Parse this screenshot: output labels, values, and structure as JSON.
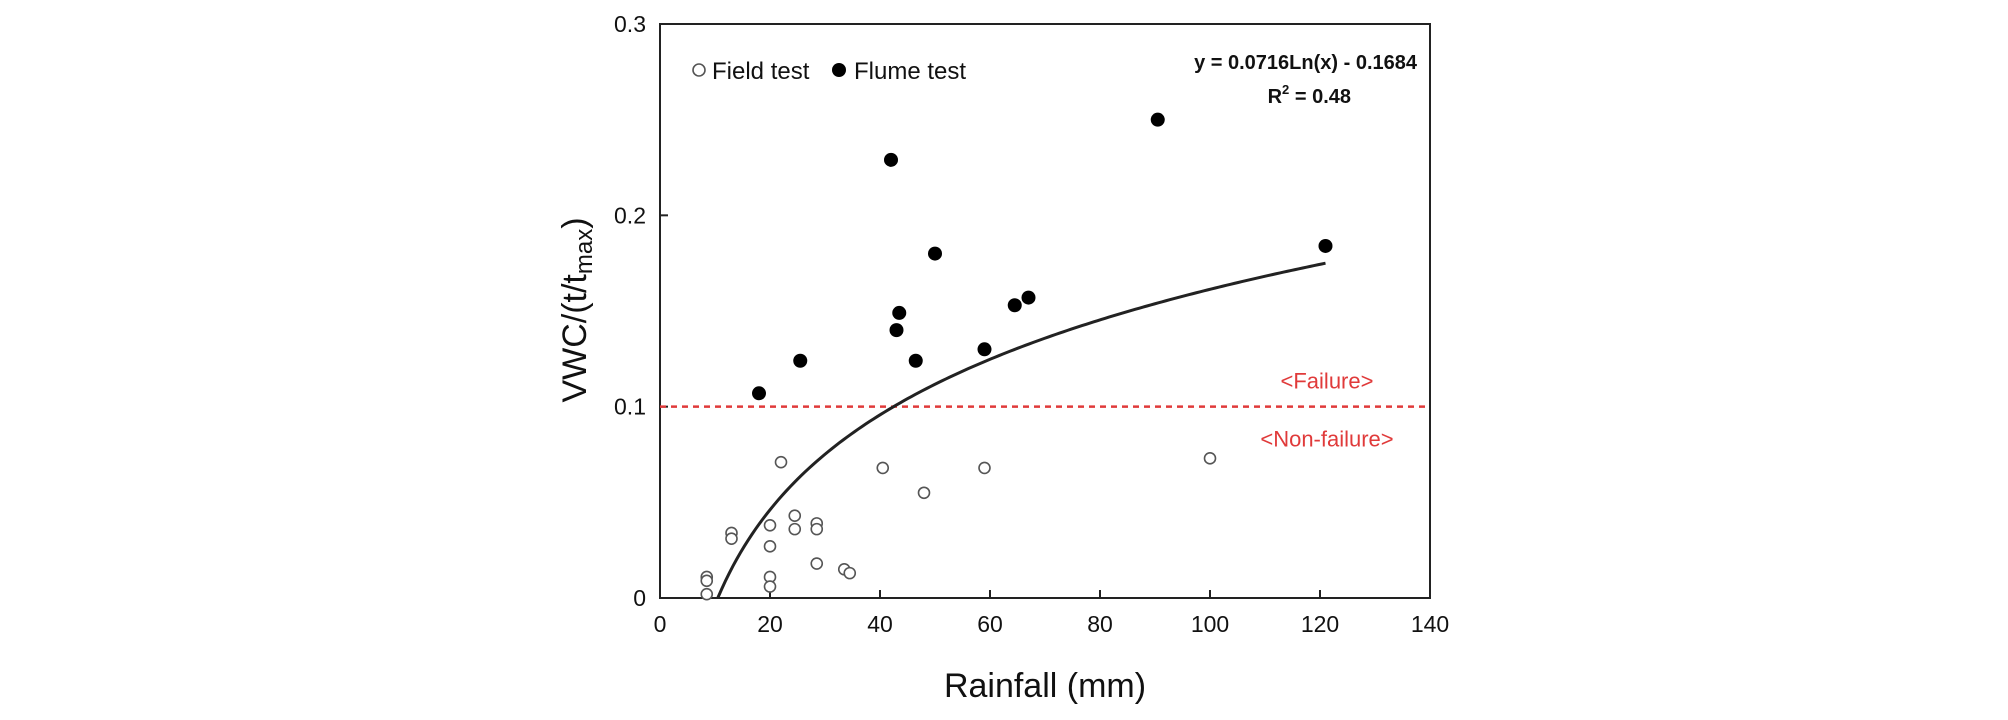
{
  "chart_data": {
    "type": "scatter",
    "title": "",
    "xlabel": "Rainfall (mm)",
    "ylabel_main": "VWC/(t/t",
    "ylabel_sub": "max",
    "ylabel_close": ")",
    "xlim": [
      0,
      140
    ],
    "ylim": [
      0,
      0.3
    ],
    "xticks": [
      0,
      20,
      40,
      60,
      80,
      100,
      120,
      140
    ],
    "xtick_labels": [
      "0",
      "20",
      "40",
      "60",
      "80",
      "100",
      "120",
      "140"
    ],
    "yticks": [
      0,
      0.1,
      0.2,
      0.3
    ],
    "ytick_labels": [
      "0",
      "0.1",
      "0.2",
      "0.3"
    ],
    "grid": false,
    "legend_position": "top-left",
    "series": [
      {
        "name": "Field test",
        "marker": "open-circle",
        "color": "#555555",
        "points": [
          [
            8.5,
            0.011
          ],
          [
            8.5,
            0.009
          ],
          [
            8.5,
            0.002
          ],
          [
            13,
            0.034
          ],
          [
            13,
            0.031
          ],
          [
            20,
            0.038
          ],
          [
            20,
            0.027
          ],
          [
            20,
            0.011
          ],
          [
            20,
            0.006
          ],
          [
            22,
            0.071
          ],
          [
            24.5,
            0.043
          ],
          [
            24.5,
            0.036
          ],
          [
            28.5,
            0.039
          ],
          [
            28.5,
            0.036
          ],
          [
            28.5,
            0.018
          ],
          [
            33.5,
            0.015
          ],
          [
            34.5,
            0.013
          ],
          [
            40.5,
            0.068
          ],
          [
            48,
            0.055
          ],
          [
            59,
            0.068
          ],
          [
            100,
            0.073
          ]
        ]
      },
      {
        "name": "Flume test",
        "marker": "filled-circle",
        "color": "#000000",
        "points": [
          [
            18,
            0.107
          ],
          [
            25.5,
            0.124
          ],
          [
            42,
            0.229
          ],
          [
            43,
            0.14
          ],
          [
            43.5,
            0.149
          ],
          [
            46.5,
            0.124
          ],
          [
            50,
            0.18
          ],
          [
            59,
            0.13
          ],
          [
            64.5,
            0.153
          ],
          [
            67,
            0.157
          ],
          [
            90.5,
            0.25
          ],
          [
            121,
            0.184
          ]
        ]
      }
    ],
    "fit": {
      "equation_label": "y = 0.0716Ln(x) - 0.1684",
      "r2_label_main": "R",
      "r2_label_sup": "2",
      "r2_label_rest": " = 0.48",
      "a": 0.0716,
      "b": -0.1684,
      "x_range": [
        10.5,
        121
      ],
      "color": "#222222"
    },
    "threshold": {
      "y": 0.1,
      "color": "#e03a3a",
      "label_above": "<Failure>",
      "label_below": "<Non-failure>"
    }
  }
}
